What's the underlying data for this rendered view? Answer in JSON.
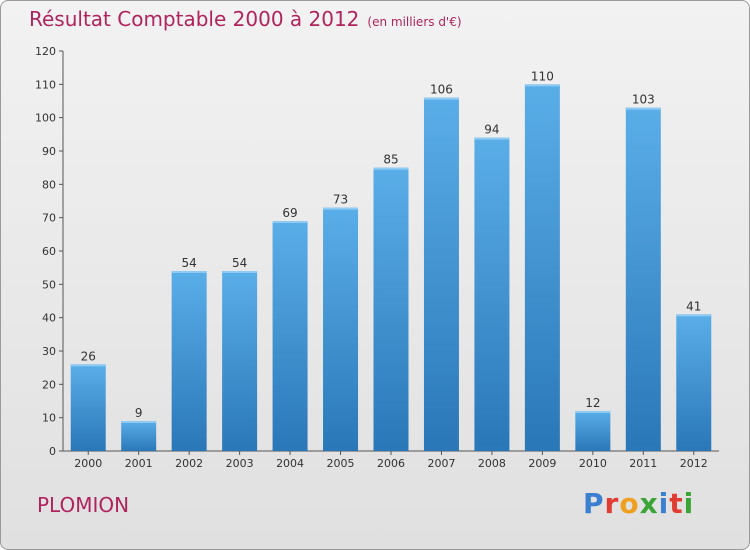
{
  "header": {
    "title": "Résultat Comptable 2000 à 2012",
    "subtitle": "(en milliers d'€)"
  },
  "place": "PLOMION",
  "logo": {
    "text": "Proxiti",
    "letter_colors": [
      "#3a7fd0",
      "#e03c31",
      "#f0a020",
      "#3aa536",
      "#3a7fd0",
      "#e03c31",
      "#3aa536"
    ]
  },
  "colors": {
    "bar_light": "#5aaee8",
    "bar_dark": "#2a77b8",
    "accent": "#b0245e"
  },
  "chart_data": {
    "type": "bar",
    "title": "Résultat Comptable 2000 à 2012",
    "subtitle": "(en milliers d'€)",
    "categories": [
      "2000",
      "2001",
      "2002",
      "2003",
      "2004",
      "2005",
      "2006",
      "2007",
      "2008",
      "2009",
      "2010",
      "2011",
      "2012"
    ],
    "values": [
      26,
      9,
      54,
      54,
      69,
      73,
      85,
      106,
      94,
      110,
      12,
      103,
      41
    ],
    "ylim": [
      0,
      120
    ],
    "yticks": [
      0,
      10,
      20,
      30,
      40,
      50,
      60,
      70,
      80,
      90,
      100,
      110,
      120
    ],
    "grid": false,
    "data_labels": true
  }
}
